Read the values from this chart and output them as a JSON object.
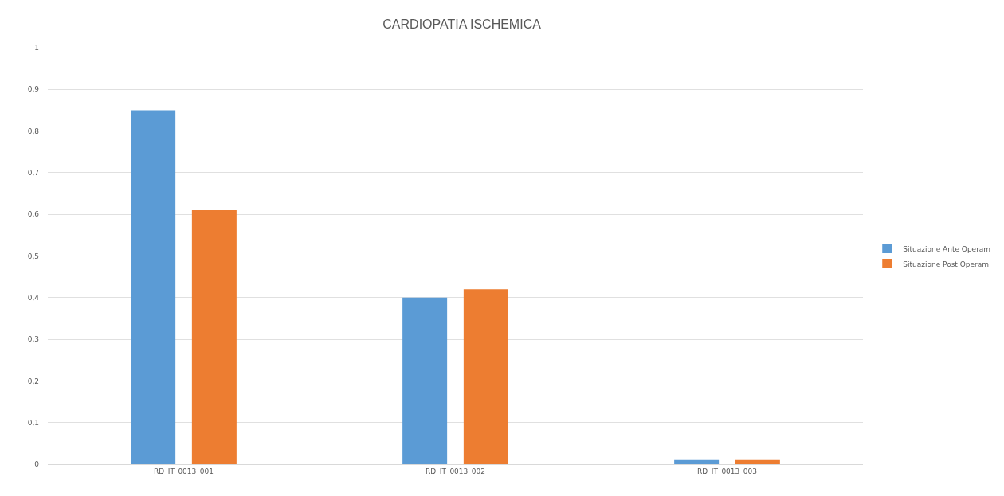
{
  "chart_data": {
    "type": "bar",
    "title": "CARDIOPATIA ISCHEMICA",
    "categories": [
      "RD_IT_0013_001",
      "RD_IT_0013_002",
      "RD_IT_0013_003"
    ],
    "series": [
      {
        "name": "Situazione Ante Operam",
        "color": "#5b9bd5",
        "values": [
          0.85,
          0.4,
          0.01
        ]
      },
      {
        "name": "Situazione Post Operam",
        "color": "#ed7d31",
        "values": [
          0.61,
          0.42,
          0.01
        ]
      }
    ],
    "ylim": [
      0,
      1
    ],
    "yticks": [
      {
        "value": 0,
        "label": "0"
      },
      {
        "value": 0.1,
        "label": "0,1"
      },
      {
        "value": 0.2,
        "label": "0,2"
      },
      {
        "value": 0.3,
        "label": "0,3"
      },
      {
        "value": 0.4,
        "label": "0,4"
      },
      {
        "value": 0.5,
        "label": "0,5"
      },
      {
        "value": 0.6,
        "label": "0,6"
      },
      {
        "value": 0.7,
        "label": "0,7"
      },
      {
        "value": 0.8,
        "label": "0,8"
      },
      {
        "value": 0.9,
        "label": "0,9"
      },
      {
        "value": 1,
        "label": "1"
      }
    ],
    "grid": "y",
    "legend": "right"
  }
}
